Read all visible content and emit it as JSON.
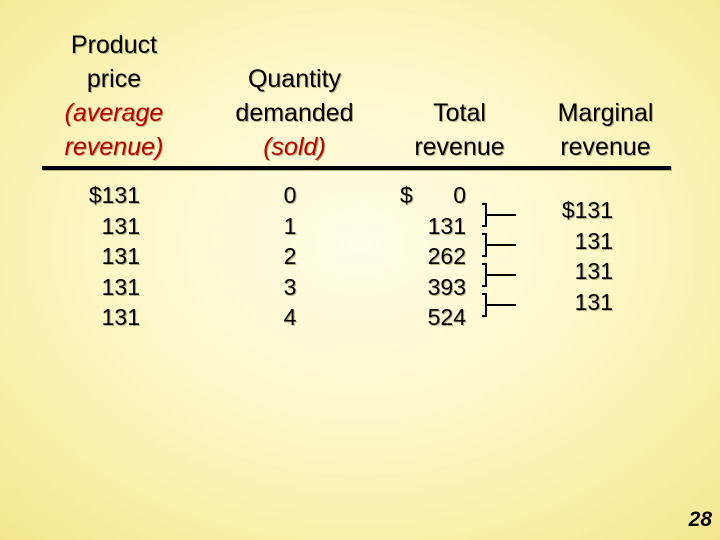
{
  "headers": {
    "price": {
      "line1": "Product",
      "line2": "price",
      "line3": "(average",
      "line4": "revenue)"
    },
    "quantity": {
      "line1": "Quantity",
      "line2": "demanded",
      "line3": "(sold)"
    },
    "total": {
      "line1": "Total",
      "line2": "revenue"
    },
    "marginal": {
      "line1": "Marginal",
      "line2": "revenue"
    }
  },
  "price_values": [
    "$131",
    "131",
    "131",
    "131",
    "131"
  ],
  "quantity_values": [
    "0",
    "1",
    "2",
    "3",
    "4"
  ],
  "total_revenue": {
    "currency": "$",
    "values": [
      "0",
      "131",
      "262",
      "393",
      "524"
    ]
  },
  "marginal_revenue_values": [
    "$131",
    "131",
    "131",
    "131"
  ],
  "page_number": "28",
  "colors": {
    "highlight_text": "#c00000",
    "background": "#fdf7c8"
  }
}
